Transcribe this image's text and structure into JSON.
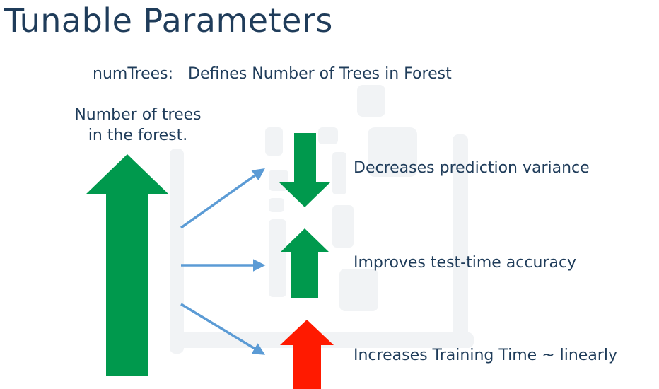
{
  "title": "Tunable Parameters",
  "subtitle": "numTrees:   Defines Number of Trees in Forest",
  "left_label": {
    "line1": "Number of trees",
    "line2": "in the forest."
  },
  "effects": [
    {
      "label": "Decreases prediction variance",
      "direction": "down",
      "color": "#00994d"
    },
    {
      "label": "Improves test-time accuracy",
      "direction": "up",
      "color": "#00994d"
    },
    {
      "label": "Increases Training Time ~ linearly",
      "direction": "up",
      "color": "#ff1a00"
    }
  ],
  "colors": {
    "big_arrow": "#00994d",
    "connector": "#5b9bd5",
    "text": "#1f3c5a"
  }
}
